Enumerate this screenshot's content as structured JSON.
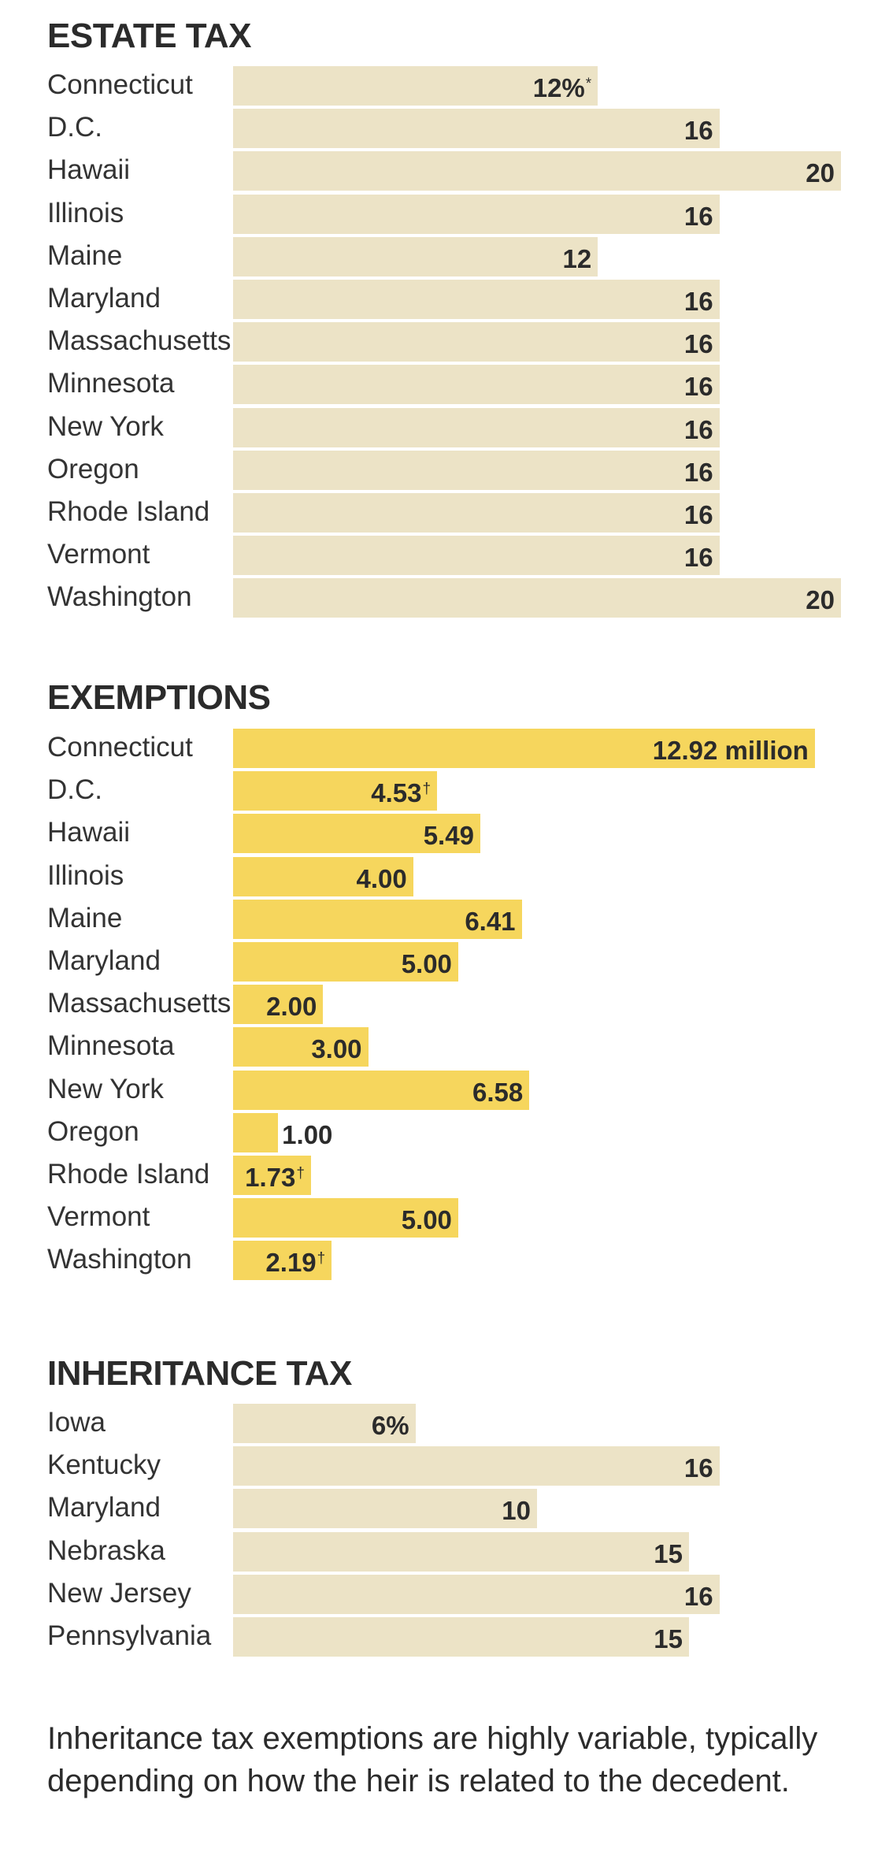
{
  "colors": {
    "tax_bar": "#ece3c6",
    "exemption_bar": "#f6d65d"
  },
  "chart_data": [
    {
      "type": "bar",
      "orientation": "horizontal",
      "title": "ESTATE TAX",
      "bar_color": "#ece3c6",
      "xlim": [
        0,
        20
      ],
      "categories": [
        "Connecticut",
        "D.C.",
        "Hawaii",
        "Illinois",
        "Maine",
        "Maryland",
        "Massachusetts",
        "Minnesota",
        "New York",
        "Oregon",
        "Rhode Island",
        "Vermont",
        "Washington"
      ],
      "values": [
        12,
        16,
        20,
        16,
        12,
        16,
        16,
        16,
        16,
        16,
        16,
        16,
        20
      ],
      "labels": [
        "12%",
        "16",
        "20",
        "16",
        "12",
        "16",
        "16",
        "16",
        "16",
        "16",
        "16",
        "16",
        "20"
      ],
      "markers": [
        "*",
        "",
        "",
        "",
        "",
        "",
        "",
        "",
        "",
        "",
        "",
        "",
        ""
      ]
    },
    {
      "type": "bar",
      "orientation": "horizontal",
      "title": "EXEMPTIONS",
      "bar_color": "#f6d65d",
      "xlim": [
        0,
        13.5
      ],
      "categories": [
        "Connecticut",
        "D.C.",
        "Hawaii",
        "Illinois",
        "Maine",
        "Maryland",
        "Massachusetts",
        "Minnesota",
        "New York",
        "Oregon",
        "Rhode Island",
        "Vermont",
        "Washington"
      ],
      "values": [
        12.92,
        4.53,
        5.49,
        4.0,
        6.41,
        5.0,
        2.0,
        3.0,
        6.58,
        1.0,
        1.73,
        5.0,
        2.19
      ],
      "labels": [
        "12.92 million",
        "4.53",
        "5.49",
        "4.00",
        "6.41",
        "5.00",
        "2.00",
        "3.00",
        "6.58",
        "1.00",
        "1.73",
        "5.00",
        "2.19"
      ],
      "markers": [
        "",
        "†",
        "",
        "",
        "",
        "",
        "",
        "",
        "",
        "",
        "†",
        "",
        "†"
      ]
    },
    {
      "type": "bar",
      "orientation": "horizontal",
      "title": "INHERITANCE TAX",
      "bar_color": "#ece3c6",
      "xlim": [
        0,
        20
      ],
      "categories": [
        "Iowa",
        "Kentucky",
        "Maryland",
        "Nebraska",
        "New Jersey",
        "Pennsylvania"
      ],
      "values": [
        6,
        16,
        10,
        15,
        16,
        15
      ],
      "labels": [
        "6%",
        "16",
        "10",
        "15",
        "16",
        "15"
      ],
      "markers": [
        "",
        "",
        "",
        "",
        "",
        ""
      ]
    }
  ],
  "note": "Inheritance tax exemptions are highly variable, typically depending on how the heir is related to the decedent."
}
